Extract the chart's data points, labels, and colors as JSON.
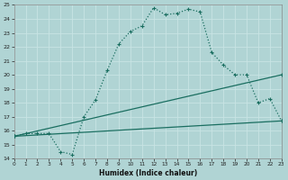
{
  "xlabel": "Humidex (Indice chaleur)",
  "xlim": [
    0,
    23
  ],
  "ylim": [
    14,
    25
  ],
  "background_color": "#b0d4d4",
  "grid_color": "#d0e8e8",
  "line_color": "#1a6e60",
  "line1_x": [
    0,
    1,
    2,
    3,
    4,
    5,
    6,
    7,
    8,
    9,
    10,
    11,
    12,
    13,
    14,
    15,
    16,
    17,
    18,
    19,
    20,
    21,
    22,
    23
  ],
  "line1_y": [
    15.6,
    15.8,
    15.8,
    15.8,
    14.5,
    14.3,
    17.0,
    18.2,
    20.3,
    22.2,
    23.1,
    23.5,
    24.8,
    24.3,
    24.4,
    24.7,
    24.5,
    21.6,
    20.7,
    20.0,
    20.0,
    18.0,
    18.3,
    16.7
  ],
  "line2_x": [
    0,
    23
  ],
  "line2_y": [
    15.6,
    20.0
  ],
  "line3_x": [
    0,
    23
  ],
  "line3_y": [
    15.6,
    16.7
  ],
  "xticks": [
    0,
    1,
    2,
    3,
    4,
    5,
    6,
    7,
    8,
    9,
    10,
    11,
    12,
    13,
    14,
    15,
    16,
    17,
    18,
    19,
    20,
    21,
    22,
    23
  ],
  "yticks": [
    14,
    15,
    16,
    17,
    18,
    19,
    20,
    21,
    22,
    23,
    24,
    25
  ]
}
